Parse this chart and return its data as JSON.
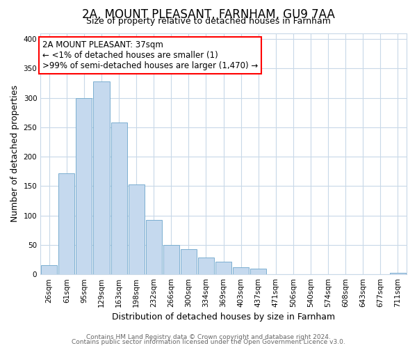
{
  "title": "2A, MOUNT PLEASANT, FARNHAM, GU9 7AA",
  "subtitle": "Size of property relative to detached houses in Farnham",
  "xlabel": "Distribution of detached houses by size in Farnham",
  "ylabel": "Number of detached properties",
  "bar_labels": [
    "26sqm",
    "61sqm",
    "95sqm",
    "129sqm",
    "163sqm",
    "198sqm",
    "232sqm",
    "266sqm",
    "300sqm",
    "334sqm",
    "369sqm",
    "403sqm",
    "437sqm",
    "471sqm",
    "506sqm",
    "540sqm",
    "574sqm",
    "608sqm",
    "643sqm",
    "677sqm",
    "711sqm"
  ],
  "bar_heights": [
    15,
    172,
    300,
    328,
    258,
    153,
    92,
    50,
    43,
    29,
    22,
    12,
    10,
    0,
    0,
    0,
    0,
    0,
    0,
    0,
    3
  ],
  "bar_color": "#c5d9ee",
  "bar_edge_color": "#7aaed0",
  "annotation_line1": "2A MOUNT PLEASANT: 37sqm",
  "annotation_line2": "← <1% of detached houses are smaller (1)",
  "annotation_line3": ">99% of semi-detached houses are larger (1,470) →",
  "ylim": [
    0,
    410
  ],
  "yticks": [
    0,
    50,
    100,
    150,
    200,
    250,
    300,
    350,
    400
  ],
  "footer1": "Contains HM Land Registry data © Crown copyright and database right 2024.",
  "footer2": "Contains public sector information licensed under the Open Government Licence v3.0.",
  "bg_color": "#ffffff",
  "plot_bg_color": "#ffffff",
  "grid_color": "#c8d8e8",
  "title_fontsize": 12,
  "subtitle_fontsize": 9,
  "axis_label_fontsize": 9,
  "tick_fontsize": 7.5,
  "annotation_fontsize": 8.5,
  "footer_fontsize": 6.5
}
